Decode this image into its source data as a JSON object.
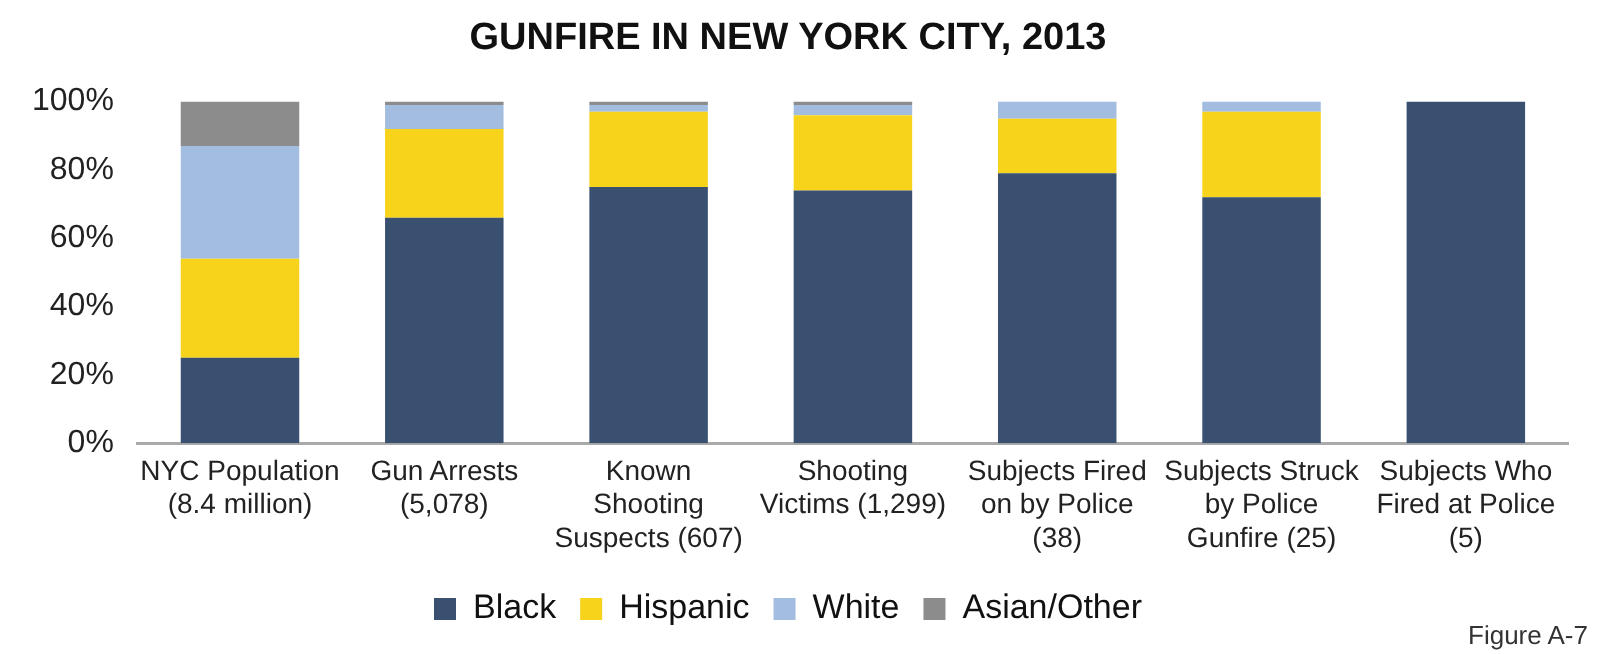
{
  "chart_data": {
    "type": "bar",
    "title": "GUNFIRE IN NEW YORK CITY, 2013",
    "stacked": true,
    "categories": [
      "NYC Population (8.4 million)",
      "Gun Arrests (5,078)",
      "Known Shooting Suspects (607)",
      "Shooting Victims (1,299)",
      "Subjects Fired on by Police (38)",
      "Subjects Struck by Police Gunfire (25)",
      "Subjects Who Fired at Police (5)"
    ],
    "series": [
      {
        "name": "Black",
        "color": "#3a5070",
        "values": [
          25,
          66,
          75,
          74,
          79,
          72,
          100
        ]
      },
      {
        "name": "Hispanic",
        "color": "#f7d31c",
        "values": [
          29,
          26,
          22,
          22,
          16,
          25,
          0
        ]
      },
      {
        "name": "White",
        "color": "#a3bde0",
        "values": [
          33,
          7,
          2,
          3,
          5,
          3,
          0
        ]
      },
      {
        "name": "Asian/Other",
        "color": "#8c8c8c",
        "values": [
          13,
          1,
          1,
          1,
          0,
          0,
          0
        ]
      }
    ],
    "ylim": [
      0,
      100
    ],
    "yticks": [
      {
        "value": 0,
        "label": "0%"
      },
      {
        "value": 20,
        "label": "20%"
      },
      {
        "value": 40,
        "label": "40%"
      },
      {
        "value": 60,
        "label": "60%"
      },
      {
        "value": 80,
        "label": "80%"
      },
      {
        "value": 100,
        "label": "100%"
      }
    ],
    "grid": false,
    "legend": "bottom",
    "annotations": [
      "Figure A-7"
    ]
  }
}
